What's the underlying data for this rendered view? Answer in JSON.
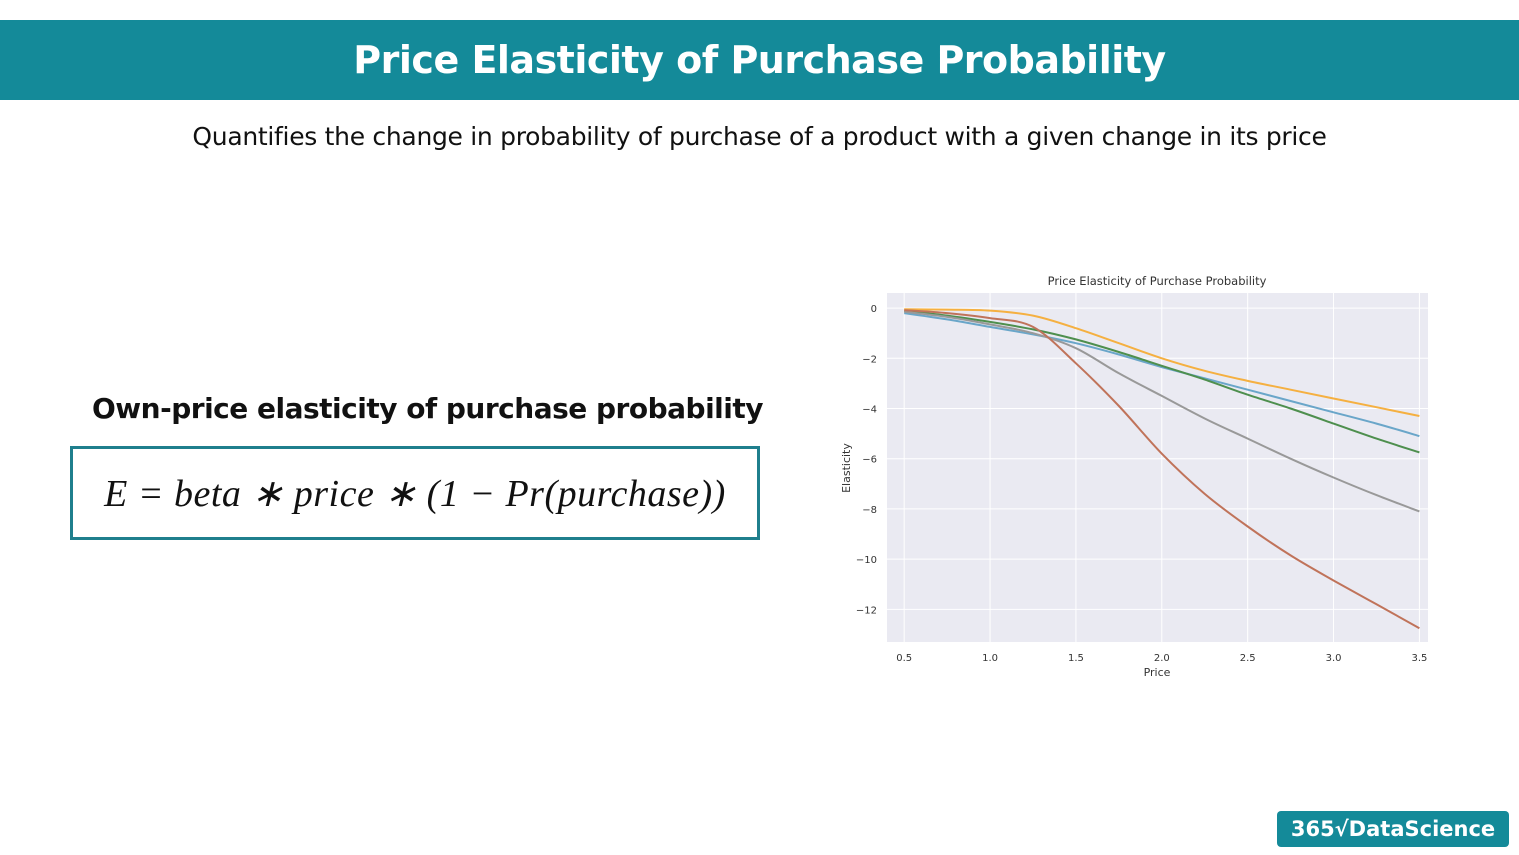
{
  "slide": {
    "title": "Price Elasticity of Purchase Probability",
    "subtitle": "Quantifies the change in probability of purchase of a product with a given change in its price",
    "section_heading": "Own-price elasticity of purchase probability",
    "formula": "E = beta ∗ price ∗ (1 − Pr(purchase))"
  },
  "logo": {
    "text": "365√DataScience"
  },
  "colors": {
    "brand": "#148a99",
    "plot_bg": "#eaeaf2"
  },
  "chart_data": {
    "type": "line",
    "title": "Price Elasticity of Purchase Probability",
    "xlabel": "Price",
    "ylabel": "Elasticity",
    "xlim": [
      0.4,
      3.55
    ],
    "ylim": [
      -13.3,
      0.6
    ],
    "xticks": [
      0.5,
      1.0,
      1.5,
      2.0,
      2.5,
      3.0,
      3.5
    ],
    "xtick_labels": [
      "0.5",
      "1.0",
      "1.5",
      "2.0",
      "2.5",
      "3.0",
      "3.5"
    ],
    "yticks": [
      0,
      -2,
      -4,
      -6,
      -8,
      -10,
      -12
    ],
    "ytick_labels": [
      "0",
      "−2",
      "−4",
      "−6",
      "−8",
      "−10",
      "−12"
    ],
    "grid": true,
    "x": [
      0.5,
      0.75,
      1.0,
      1.25,
      1.5,
      1.75,
      2.0,
      2.25,
      2.5,
      2.75,
      3.0,
      3.25,
      3.5
    ],
    "series": [
      {
        "color": "#f5b041",
        "values": [
          -0.05,
          -0.06,
          -0.1,
          -0.3,
          -0.8,
          -1.4,
          -2.0,
          -2.5,
          -2.9,
          -3.25,
          -3.6,
          -3.95,
          -4.3
        ]
      },
      {
        "color": "#6aa6c9",
        "values": [
          -0.2,
          -0.45,
          -0.75,
          -1.05,
          -1.4,
          -1.85,
          -2.35,
          -2.8,
          -3.25,
          -3.7,
          -4.15,
          -4.6,
          -5.1
        ]
      },
      {
        "color": "#4e8f4e",
        "values": [
          -0.12,
          -0.3,
          -0.55,
          -0.85,
          -1.25,
          -1.75,
          -2.3,
          -2.85,
          -3.45,
          -4.0,
          -4.6,
          -5.2,
          -5.75
        ]
      },
      {
        "color": "#999999",
        "values": [
          -0.15,
          -0.35,
          -0.65,
          -1.0,
          -1.6,
          -2.6,
          -3.5,
          -4.4,
          -5.2,
          -6.0,
          -6.75,
          -7.45,
          -8.1
        ]
      },
      {
        "color": "#c0735a",
        "values": [
          -0.08,
          -0.2,
          -0.4,
          -0.75,
          -2.2,
          -3.9,
          -5.8,
          -7.4,
          -8.7,
          -9.85,
          -10.85,
          -11.8,
          -12.75
        ]
      }
    ]
  }
}
